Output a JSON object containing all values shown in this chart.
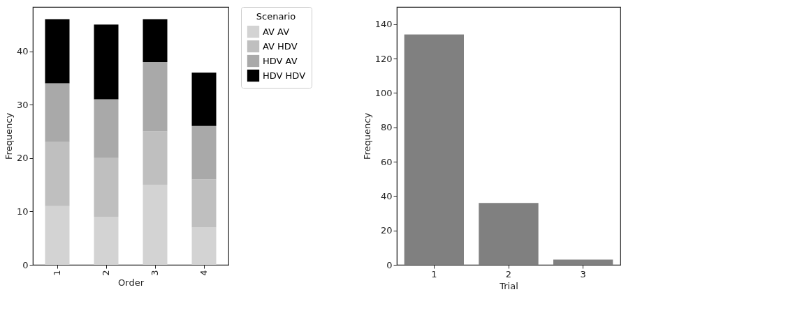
{
  "chart_data": [
    {
      "type": "bar",
      "stacked": true,
      "xlabel": "Order",
      "ylabel": "Frequency",
      "legend_title": "Scenario",
      "legend": "top right",
      "categories": [
        "1",
        "2",
        "3",
        "4"
      ],
      "ylim": [
        0,
        48.3
      ],
      "yticks": [
        0,
        10,
        20,
        30,
        40
      ],
      "series": [
        {
          "name": "AV AV",
          "color": "#d3d3d3",
          "values": [
            11,
            9,
            15,
            7
          ]
        },
        {
          "name": "AV HDV",
          "color": "#bfbfbf",
          "values": [
            12,
            11,
            10,
            9
          ]
        },
        {
          "name": "HDV AV",
          "color": "#a9a9a9",
          "values": [
            11,
            11,
            13,
            10
          ]
        },
        {
          "name": "HDV HDV",
          "color": "#000000",
          "values": [
            12,
            14,
            8,
            10
          ]
        }
      ]
    },
    {
      "type": "bar",
      "xlabel": "Trial",
      "ylabel": "Frequency",
      "categories": [
        "1",
        "2",
        "3"
      ],
      "ylim": [
        0,
        150
      ],
      "yticks": [
        0,
        20,
        40,
        60,
        80,
        100,
        120,
        140
      ],
      "series": [
        {
          "color": "#808080",
          "values": [
            134,
            36,
            3
          ]
        }
      ]
    }
  ]
}
